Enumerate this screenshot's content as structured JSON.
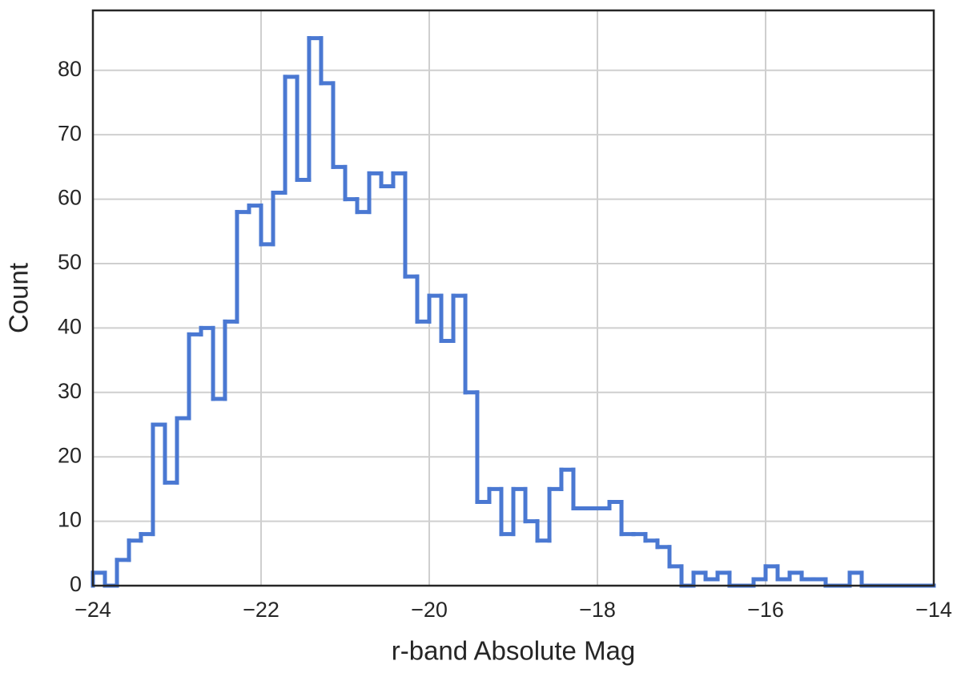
{
  "chart_data": {
    "type": "histogram",
    "xlabel": "r-band Absolute Mag",
    "ylabel": "Count",
    "bins": [
      -24,
      -23.857,
      -23.714,
      -23.571,
      -23.429,
      -23.286,
      -23.143,
      -23,
      -22.857,
      -22.714,
      -22.571,
      -22.429,
      -22.286,
      -22.143,
      -22,
      -21.857,
      -21.714,
      -21.571,
      -21.429,
      -21.286,
      -21.143,
      -21,
      -20.857,
      -20.714,
      -20.571,
      -20.429,
      -20.286,
      -20.143,
      -20,
      -19.857,
      -19.714,
      -19.571,
      -19.429,
      -19.286,
      -19.143,
      -19,
      -18.857,
      -18.714,
      -18.571,
      -18.429,
      -18.286,
      -18.143,
      -18,
      -17.857,
      -17.714,
      -17.571,
      -17.429,
      -17.286,
      -17.143,
      -17,
      -16.857,
      -16.714,
      -16.571,
      -16.429,
      -16.286,
      -16.143,
      -16,
      -15.857,
      -15.714,
      -15.571,
      -15.429,
      -15.286,
      -15.143,
      -15,
      -14.857,
      -14.714,
      -14.571,
      -14.429,
      -14.286,
      -14.143,
      -14
    ],
    "values": [
      2,
      0,
      4,
      7,
      8,
      25,
      16,
      26,
      39,
      40,
      29,
      41,
      58,
      59,
      53,
      61,
      79,
      63,
      85,
      78,
      65,
      60,
      58,
      64,
      62,
      64,
      48,
      41,
      45,
      38,
      45,
      30,
      13,
      15,
      8,
      15,
      10,
      7,
      15,
      18,
      12,
      12,
      12,
      13,
      8,
      8,
      7,
      6,
      3,
      0,
      2,
      1,
      2,
      0,
      0,
      1,
      3,
      1,
      2,
      1,
      1,
      0,
      0,
      2,
      0,
      0,
      0,
      0,
      0,
      0
    ],
    "color": "#4a78d2",
    "xlim": [
      -24,
      -14
    ],
    "xticks": [
      {
        "value": -24,
        "label": "−24"
      },
      {
        "value": -22,
        "label": "−22"
      },
      {
        "value": -20,
        "label": "−20"
      },
      {
        "value": -18,
        "label": "−18"
      },
      {
        "value": -16,
        "label": "−16"
      },
      {
        "value": -14,
        "label": "−14"
      }
    ],
    "ylim": [
      0,
      89.3
    ],
    "yticks": [
      0,
      10,
      20,
      30,
      40,
      50,
      60,
      70,
      80
    ],
    "grid": true
  }
}
